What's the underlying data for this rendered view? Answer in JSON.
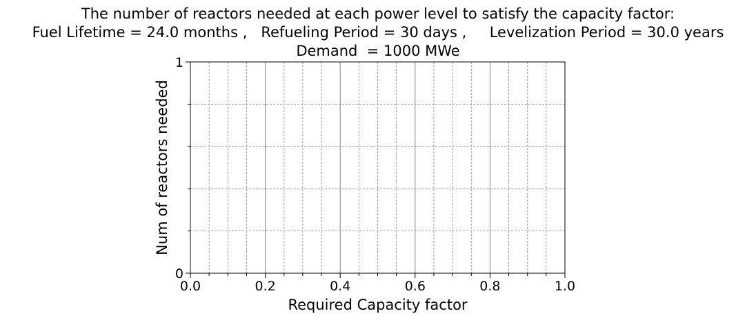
{
  "chart_data": {
    "type": "line",
    "title_lines": [
      "The number of reactors needed at each power level to satisfy the capacity factor:",
      "Fuel Lifetime = 24.0 months ,   Refueling Period = 30 days ,     Levelization Period = 30.0 years",
      "Demand  = 1000 MWe"
    ],
    "xlabel": "Required Capacity factor",
    "ylabel": "Num of reactors needed",
    "xlim": [
      0.0,
      1.0
    ],
    "ylim": [
      0,
      1
    ],
    "x_major_ticks": [
      0.0,
      0.2,
      0.4,
      0.6,
      0.8,
      1.0
    ],
    "x_tick_labels": [
      "0.0",
      "0.2",
      "0.4",
      "0.6",
      "0.8",
      "1.0"
    ],
    "x_minor_ticks": [
      0.05,
      0.1,
      0.15,
      0.25,
      0.3,
      0.35,
      0.45,
      0.5,
      0.55,
      0.65,
      0.7,
      0.75,
      0.85,
      0.9,
      0.95
    ],
    "y_major_ticks": [
      0,
      1
    ],
    "y_tick_labels": [
      "0",
      "1"
    ],
    "y_minor_ticks": [
      0.2,
      0.4,
      0.6,
      0.8
    ],
    "grid": true,
    "series": []
  }
}
